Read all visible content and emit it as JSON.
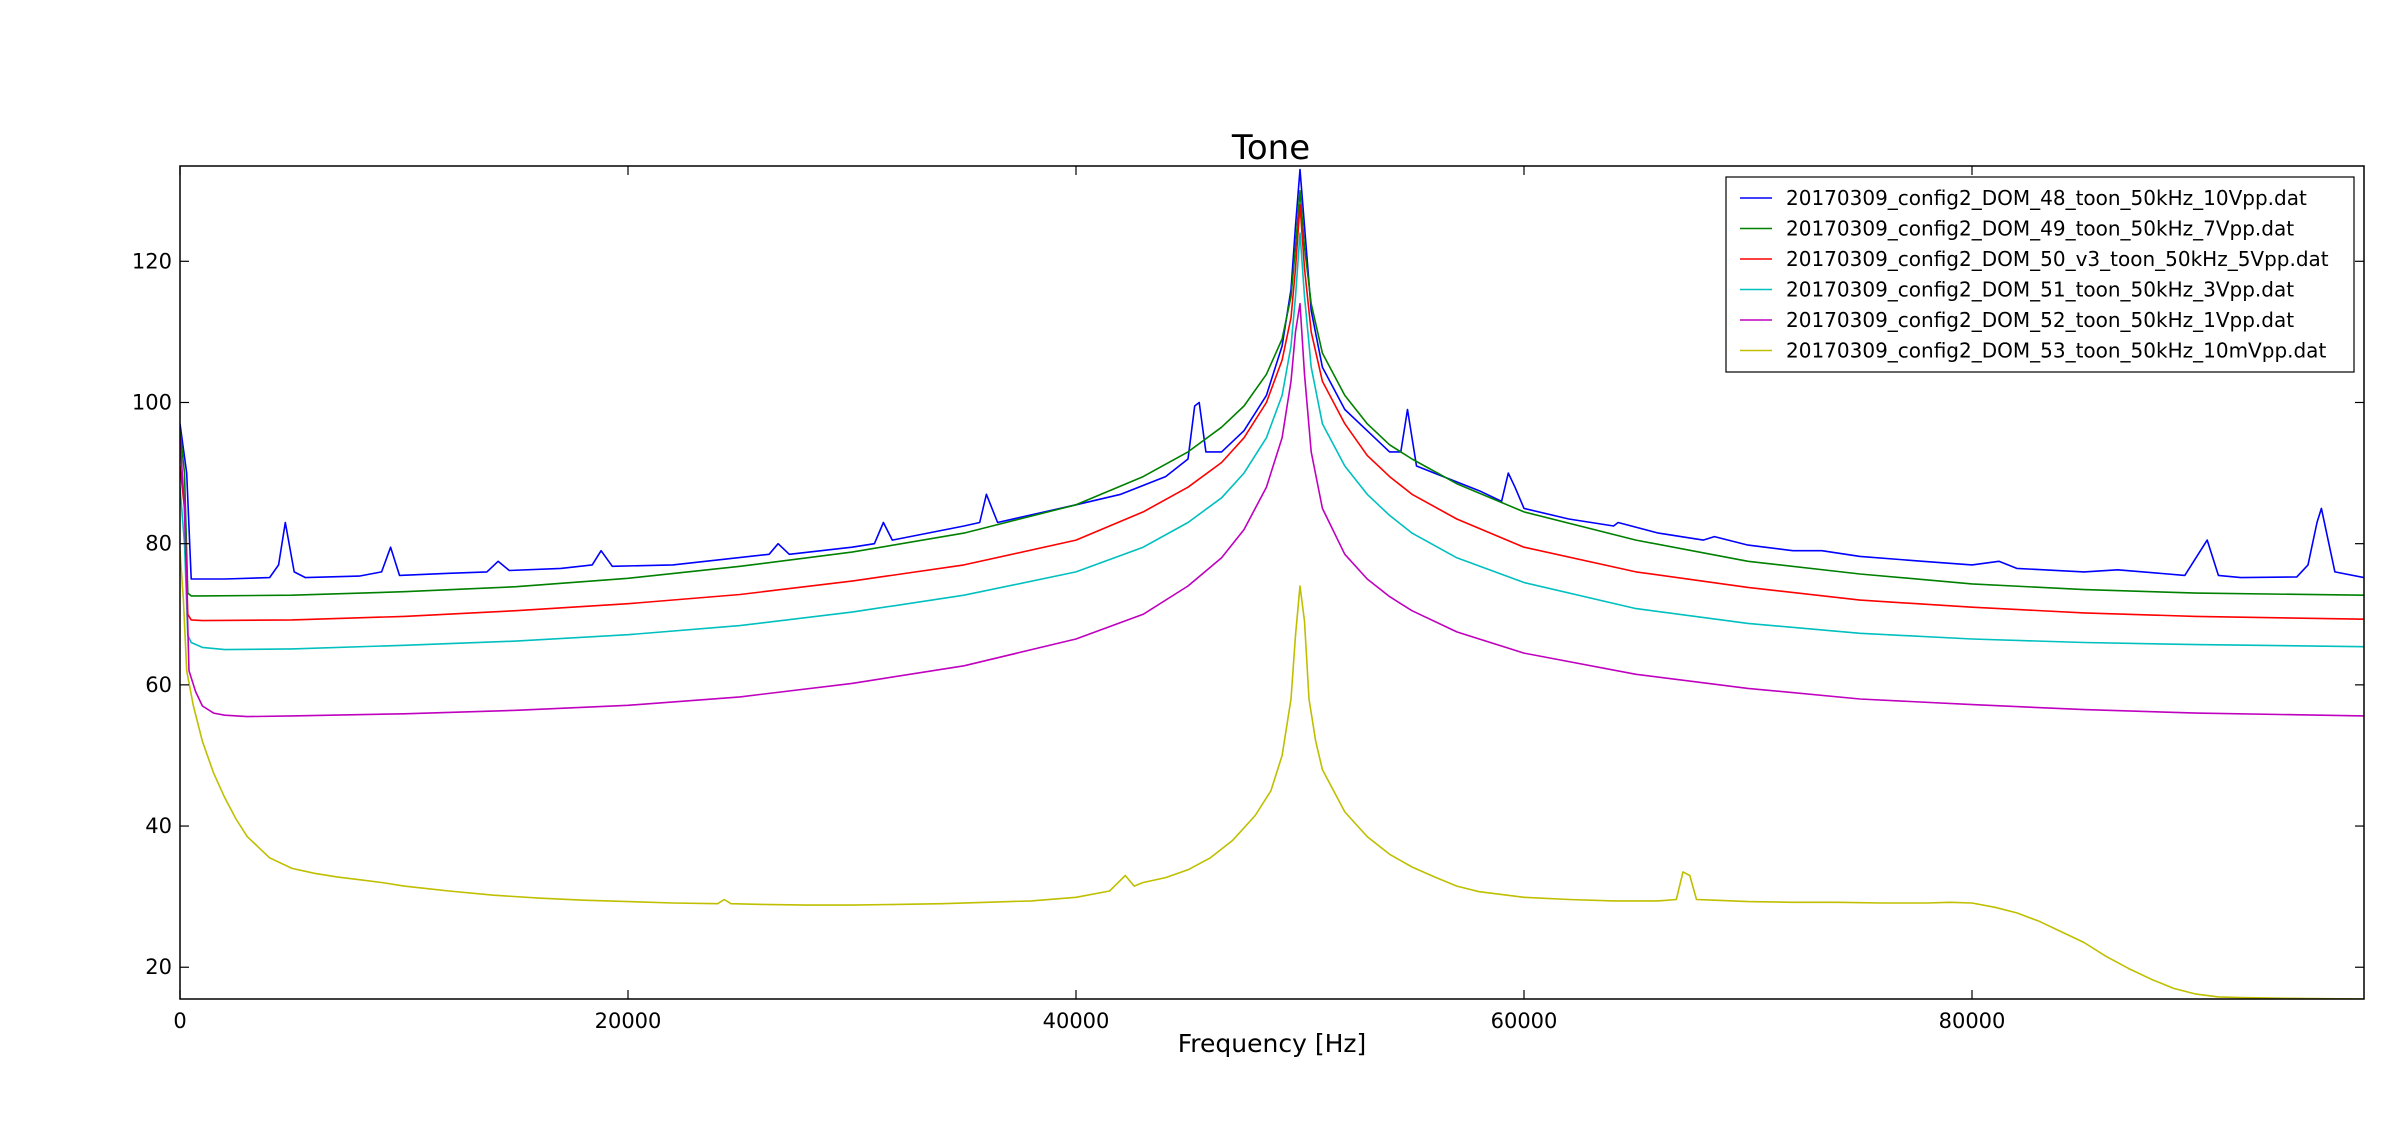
{
  "chart_data": {
    "type": "line",
    "title": "Tone",
    "xlabel": "Frequency [Hz]",
    "ylabel": "",
    "xlim": [
      0,
      97500
    ],
    "ylim": [
      15.5,
      133.5
    ],
    "xticks": [
      0,
      20000,
      40000,
      60000,
      80000
    ],
    "yticks": [
      20,
      40,
      60,
      80,
      100,
      120
    ],
    "grid": false,
    "legend_position": "top-right",
    "series": [
      {
        "name": "20170309_config2_DOM_48_toon_50kHz_10Vpp.dat",
        "color": "#0000ff",
        "x": [
          0,
          300,
          500,
          1000,
          2000,
          4000,
          4400,
          4700,
          5100,
          5600,
          8000,
          9000,
          9400,
          9800,
          12000,
          13700,
          14200,
          14700,
          17000,
          18400,
          18800,
          19300,
          22000,
          26300,
          26700,
          27200,
          30000,
          31000,
          31400,
          31800,
          35000,
          35700,
          36000,
          36500,
          40000,
          42000,
          44000,
          45000,
          45300,
          45500,
          45800,
          46500,
          47500,
          48500,
          49200,
          49600,
          49800,
          50000,
          50200,
          50500,
          51000,
          52000,
          53000,
          54000,
          54500,
          54800,
          55200,
          56000,
          58000,
          59000,
          59300,
          59600,
          60000,
          62000,
          64000,
          64200,
          66000,
          68000,
          68500,
          70000,
          72000,
          73300,
          75000,
          77800,
          80000,
          81200,
          82000,
          85000,
          86500,
          89500,
          90500,
          91000,
          92000,
          94500,
          95000,
          95400,
          95600,
          96200,
          97500
        ],
        "y": [
          97,
          90,
          75,
          75,
          75,
          75.2,
          77,
          83,
          76,
          75.2,
          75.4,
          76,
          79.5,
          75.5,
          75.8,
          76,
          77.5,
          76.2,
          76.5,
          77,
          79,
          76.8,
          77,
          78.5,
          80,
          78.5,
          79.5,
          80,
          83,
          80.5,
          82.5,
          83,
          87,
          83,
          85.5,
          87,
          89.5,
          92,
          99.5,
          100,
          93,
          93,
          96,
          101,
          108,
          116,
          125,
          133,
          125,
          113,
          105,
          99,
          96,
          93,
          93,
          99,
          91,
          90,
          87.5,
          86,
          90,
          88,
          85,
          83.5,
          82.5,
          83,
          81.5,
          80.5,
          81,
          79.8,
          79,
          79,
          78.2,
          77.5,
          77,
          77.5,
          76.5,
          76,
          76.3,
          75.5,
          80.5,
          75.5,
          75.2,
          75.3,
          77,
          83,
          85,
          76,
          75.2
        ]
      },
      {
        "name": "20170309_config2_DOM_49_toon_50kHz_7Vpp.dat",
        "color": "#008000",
        "x": [
          0,
          200,
          350,
          500,
          1000,
          5000,
          10000,
          15000,
          20000,
          25000,
          30000,
          35000,
          40000,
          43000,
          45000,
          46500,
          47500,
          48500,
          49200,
          49600,
          49800,
          50000,
          50200,
          50500,
          51000,
          52000,
          53000,
          54000,
          55000,
          57000,
          60000,
          65000,
          70000,
          75000,
          80000,
          85000,
          90000,
          97500
        ],
        "y": [
          96,
          90,
          73,
          72.6,
          72.6,
          72.7,
          73.2,
          73.9,
          75.1,
          76.8,
          78.8,
          81.5,
          85.5,
          89.5,
          93,
          96.5,
          99.5,
          104,
          109,
          115,
          122,
          130,
          122,
          114,
          107,
          101,
          97,
          94,
          92,
          88.5,
          84.5,
          80.5,
          77.5,
          75.7,
          74.3,
          73.5,
          73,
          72.7
        ]
      },
      {
        "name": "20170309_config2_DOM_50_v3_toon_50kHz_5Vpp.dat",
        "color": "#ff0000",
        "x": [
          0,
          200,
          350,
          500,
          1000,
          5000,
          10000,
          15000,
          20000,
          25000,
          30000,
          35000,
          40000,
          43000,
          45000,
          46500,
          47500,
          48500,
          49200,
          49600,
          49800,
          50000,
          50200,
          50500,
          51000,
          52000,
          53000,
          54000,
          55000,
          57000,
          60000,
          65000,
          70000,
          75000,
          80000,
          85000,
          90000,
          97500
        ],
        "y": [
          91,
          85,
          70,
          69.2,
          69.1,
          69.2,
          69.7,
          70.5,
          71.5,
          72.8,
          74.7,
          77,
          80.5,
          84.5,
          88,
          91.5,
          95,
          100,
          106,
          112,
          119,
          128,
          119,
          110,
          103,
          97,
          92.5,
          89.5,
          87,
          83.5,
          79.5,
          76,
          73.8,
          72,
          71,
          70.2,
          69.7,
          69.3
        ]
      },
      {
        "name": "20170309_config2_DOM_51_toon_50kHz_3Vpp.dat",
        "color": "#00bfbf",
        "x": [
          0,
          200,
          350,
          500,
          1000,
          2000,
          5000,
          10000,
          15000,
          20000,
          25000,
          30000,
          35000,
          40000,
          43000,
          45000,
          46500,
          47500,
          48500,
          49200,
          49600,
          49800,
          50000,
          50200,
          50500,
          51000,
          52000,
          53000,
          54000,
          55000,
          57000,
          60000,
          65000,
          70000,
          75000,
          80000,
          85000,
          90000,
          97500
        ],
        "y": [
          88,
          80,
          67,
          66,
          65.3,
          65,
          65.1,
          65.6,
          66.2,
          67.1,
          68.4,
          70.3,
          72.7,
          76,
          79.5,
          83,
          86.5,
          90,
          95,
          101,
          108,
          115,
          124,
          115,
          105,
          97,
          91,
          87,
          84,
          81.5,
          78,
          74.5,
          70.8,
          68.7,
          67.3,
          66.5,
          66,
          65.7,
          65.4
        ]
      },
      {
        "name": "20170309_config2_DOM_52_toon_50kHz_1Vpp.dat",
        "color": "#bf00bf",
        "x": [
          0,
          200,
          400,
          700,
          1000,
          1500,
          2000,
          3000,
          5000,
          10000,
          15000,
          20000,
          25000,
          30000,
          35000,
          40000,
          43000,
          45000,
          46500,
          47500,
          48500,
          49200,
          49600,
          49800,
          50000,
          50200,
          50500,
          51000,
          52000,
          53000,
          54000,
          55000,
          57000,
          60000,
          65000,
          70000,
          75000,
          80000,
          85000,
          90000,
          97500
        ],
        "y": [
          95,
          85,
          62,
          59,
          57,
          56,
          55.7,
          55.5,
          55.6,
          55.9,
          56.4,
          57.1,
          58.3,
          60.2,
          62.7,
          66.5,
          70,
          74,
          78,
          82,
          88,
          95,
          103,
          110,
          114,
          104,
          93,
          85,
          78.5,
          75,
          72.5,
          70.5,
          67.5,
          64.5,
          61.5,
          59.5,
          58,
          57.2,
          56.5,
          56,
          55.6
        ]
      },
      {
        "name": "20170309_config2_DOM_53_toon_50kHz_10mVpp.dat",
        "color": "#bfbf00",
        "x": [
          0,
          150,
          300,
          600,
          1000,
          1500,
          2000,
          2500,
          3000,
          3500,
          4000,
          5000,
          6000,
          7000,
          8000,
          9000,
          10000,
          12000,
          14000,
          16000,
          18000,
          20000,
          22000,
          24000,
          24300,
          24600,
          26000,
          28000,
          30000,
          32000,
          34000,
          36000,
          38000,
          40000,
          41500,
          42200,
          42600,
          43000,
          44000,
          45000,
          46000,
          47000,
          48000,
          48700,
          49200,
          49600,
          49800,
          50000,
          50200,
          50400,
          50700,
          51000,
          51500,
          52000,
          53000,
          54000,
          55000,
          56000,
          57000,
          58000,
          60000,
          62000,
          64000,
          66000,
          66800,
          67100,
          67400,
          67700,
          68500,
          70000,
          72000,
          74000,
          76000,
          78000,
          79000,
          80000,
          81000,
          82000,
          83000,
          84000,
          85000,
          86000,
          87000,
          88000,
          89000,
          90000,
          91000,
          92000,
          94000,
          97500
        ],
        "y": [
          79,
          72,
          62,
          57,
          52,
          47.5,
          44,
          41,
          38.5,
          37,
          35.5,
          34,
          33.3,
          32.8,
          32.4,
          32,
          31.5,
          30.8,
          30.2,
          29.8,
          29.5,
          29.3,
          29.1,
          29,
          29.6,
          29,
          28.9,
          28.8,
          28.8,
          28.9,
          29,
          29.2,
          29.4,
          29.9,
          30.8,
          33,
          31.5,
          32,
          32.7,
          33.8,
          35.5,
          38,
          41.5,
          45,
          50,
          58,
          67,
          74,
          69,
          58,
          52,
          48,
          45,
          42,
          38.5,
          36,
          34.2,
          32.8,
          31.5,
          30.7,
          29.9,
          29.6,
          29.4,
          29.4,
          29.6,
          33.5,
          33,
          29.6,
          29.5,
          29.3,
          29.2,
          29.2,
          29.1,
          29.1,
          29.2,
          29.1,
          28.5,
          27.7,
          26.5,
          25,
          23.5,
          21.5,
          19.8,
          18.3,
          17,
          16.2,
          15.8,
          15.7,
          15.6,
          15.5
        ]
      }
    ]
  }
}
